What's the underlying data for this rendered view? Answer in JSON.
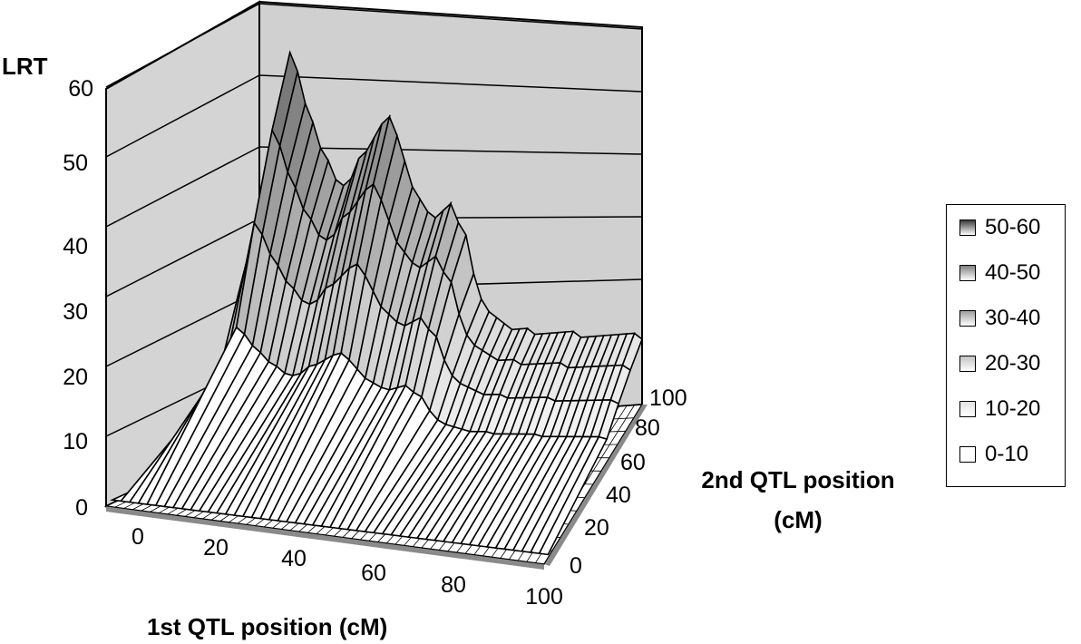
{
  "chart_data": {
    "type": "surface",
    "zlabel": "LRT",
    "xlabel": "1st QTL position (cM)",
    "ylabel_line1": "2nd QTL position",
    "ylabel_line2": "(cM)",
    "zlim": [
      0,
      60
    ],
    "z_ticks": [
      "0",
      "10",
      "20",
      "30",
      "40",
      "50",
      "60"
    ],
    "x_ticks": [
      "0",
      "20",
      "40",
      "60",
      "80",
      "100"
    ],
    "y_ticks": [
      "0",
      "20",
      "40",
      "60",
      "80",
      "100"
    ],
    "legend": [
      {
        "label": "50-60",
        "color": "#3a3a3a"
      },
      {
        "label": "40-50",
        "color": "#808080"
      },
      {
        "label": "30-40",
        "color": "#9e9e9e"
      },
      {
        "label": "20-30",
        "color": "#c4c4c4"
      },
      {
        "label": "10-20",
        "color": "#e2e2e2"
      },
      {
        "label": "0-10",
        "color": "#ffffff"
      }
    ],
    "grid": true,
    "legend_position": "right",
    "back_slice_profile": {
      "x": [
        0,
        2,
        4,
        6,
        8,
        10,
        12,
        14,
        16,
        18,
        20,
        22,
        24,
        26,
        28,
        30,
        32,
        34,
        36,
        38,
        40,
        42,
        44,
        46,
        48,
        50,
        52,
        54,
        56,
        58,
        60,
        62,
        64,
        66,
        68,
        70,
        72,
        74,
        76,
        78,
        80,
        82,
        84,
        86,
        88,
        90,
        92,
        94,
        96,
        98,
        100
      ],
      "z": [
        1,
        30,
        40,
        48,
        58,
        55,
        50,
        47,
        43,
        41,
        38,
        37,
        38,
        41,
        42,
        44,
        46,
        47,
        44,
        40,
        36,
        34,
        32,
        31,
        32,
        33,
        30,
        28,
        22,
        18,
        16,
        15,
        14,
        13,
        13,
        13,
        12,
        12,
        12,
        12,
        12,
        12,
        11,
        11,
        11,
        11,
        11,
        11,
        11,
        11,
        10
      ]
    }
  }
}
